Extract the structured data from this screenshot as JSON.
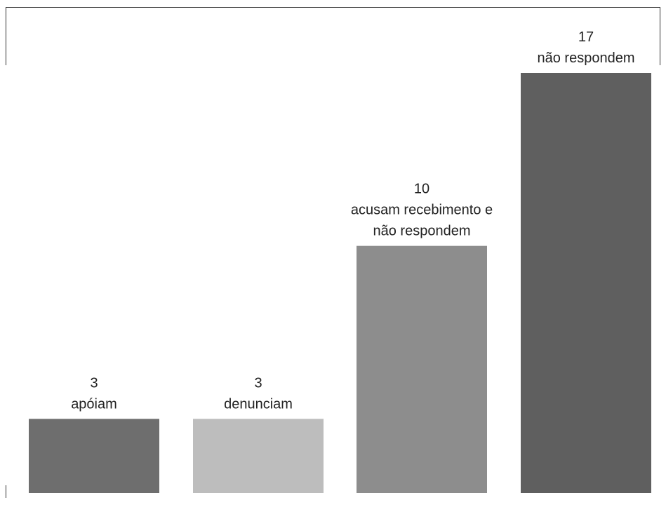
{
  "chart_data": {
    "type": "bar",
    "title": "",
    "xlabel": "",
    "ylabel": "",
    "ylim": [
      0,
      17
    ],
    "grid": false,
    "legend": "none",
    "categories": [
      "apóiam",
      "denunciam",
      "acusam recebimento e não respondem",
      "não respondem"
    ],
    "values": [
      3,
      3,
      10,
      17
    ],
    "bars": [
      {
        "value": 3,
        "value_label": "3",
        "label_lines": [
          "apóiam"
        ],
        "color": "#6e6e6e"
      },
      {
        "value": 3,
        "value_label": "3",
        "label_lines": [
          "denunciam"
        ],
        "color": "#bdbdbd"
      },
      {
        "value": 10,
        "value_label": "10",
        "label_lines": [
          "acusam recebimento e",
          "não respondem"
        ],
        "color": "#8d8d8d"
      },
      {
        "value": 17,
        "value_label": "17",
        "label_lines": [
          "não respondem"
        ],
        "color": "#5f5f5f"
      }
    ]
  }
}
